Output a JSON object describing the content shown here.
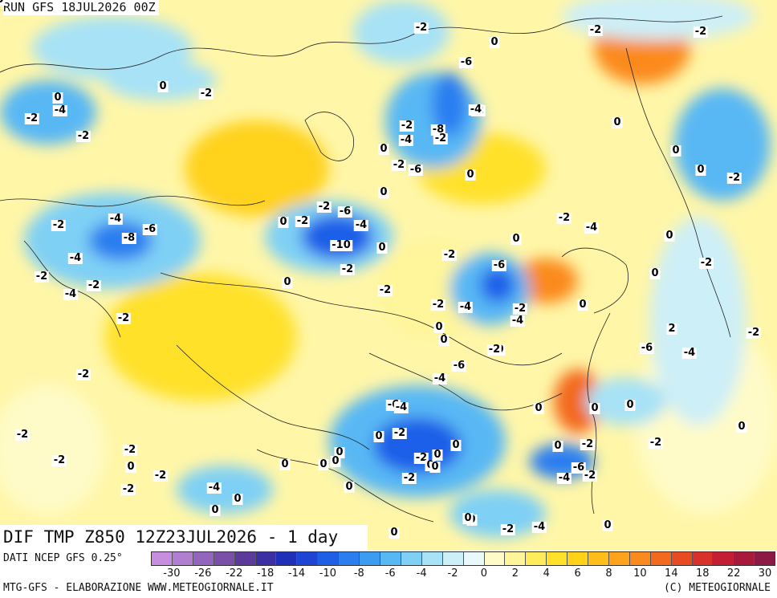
{
  "header": {
    "run": "RUN GFS 18JUL2026 00Z"
  },
  "title": {
    "field": "DIF TMP Z850 12Z23JUL2026 - 1 day"
  },
  "footer": {
    "source": "DATI NCEP GFS 0.25°",
    "credit": "MTG-GFS - ELABORAZIONE WWW.METEOGIORNALE.IT",
    "copyright": "(C) METEOGIORNALE"
  },
  "colorbar": {
    "colors": [
      "#c78ee0",
      "#b07fd0",
      "#9266bd",
      "#7a4fa8",
      "#5b3a9c",
      "#3b2fa3",
      "#1f2fb8",
      "#1e44d6",
      "#1f5fe8",
      "#2a7ef0",
      "#3c9cf2",
      "#58b8f4",
      "#7fd0f5",
      "#a7e2f6",
      "#cdeff7",
      "#e9f8fb",
      "#fffbc8",
      "#fff59a",
      "#ffec5a",
      "#ffe12c",
      "#ffd21a",
      "#ffbd1c",
      "#ffa31d",
      "#fb8a1e",
      "#f3691f",
      "#e84a22",
      "#d8302a",
      "#c41e34",
      "#a81a3c",
      "#8c1a44"
    ],
    "tick_labels": [
      "-30",
      "-26",
      "-22",
      "-18",
      "-14",
      "-10",
      "-8",
      "-6",
      "-4",
      "-2",
      "0",
      "2",
      "4",
      "6",
      "8",
      "10",
      "14",
      "18",
      "22",
      "30"
    ]
  },
  "contour_labels": [
    "-2",
    "0",
    "-2",
    "-2",
    "0",
    "-6",
    "0",
    "-2",
    "-4",
    "-2",
    "-2",
    "-2",
    "0",
    "-2",
    "-8",
    "-4",
    "-2",
    "-4",
    "0",
    "-2",
    "-6",
    "0",
    "0",
    "0",
    "-4",
    "-6",
    "-2",
    "-2",
    "-4",
    "-8",
    "-6",
    "-2",
    "0",
    "-2",
    "-4",
    "-10",
    "0",
    "-2",
    "-2",
    "-6",
    "0",
    "-4",
    "-2",
    "0",
    "-2",
    "0",
    "-2",
    "-4",
    "-2",
    "0",
    "-2",
    "0",
    "-4",
    "-2",
    "0",
    "-4",
    "-2",
    "0",
    "0",
    "-2",
    "0",
    "2",
    "-2",
    "-4",
    "-6",
    "-2",
    "-6",
    "-4",
    "-6",
    "-4",
    "0",
    "-2",
    "-2",
    "-2",
    "0",
    "0",
    "0",
    "0",
    "0",
    "0",
    "0",
    "-2",
    "0",
    "-2",
    "-2",
    "-2",
    "-2",
    "-4",
    "0",
    "0",
    "0",
    "-2",
    "0",
    "-2",
    "-4",
    "0",
    "0",
    "0",
    "0",
    "0",
    "0",
    "0",
    "-2",
    "0",
    "-2",
    "-6",
    "-4",
    "-2",
    "0",
    "0"
  ]
}
